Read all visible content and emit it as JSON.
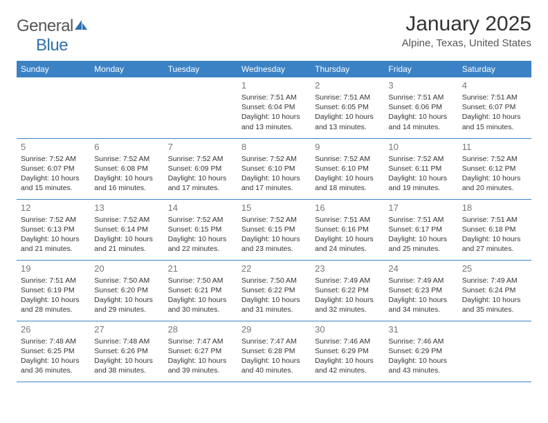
{
  "logo": {
    "text_general": "General",
    "text_blue": "Blue",
    "general_color": "#666666",
    "blue_color": "#2f6fb0",
    "icon_color": "#2f6fb0"
  },
  "title": "January 2025",
  "location": "Alpine, Texas, United States",
  "colors": {
    "header_bg": "#3b82c4",
    "header_text": "#ffffff",
    "border": "#3b82c4",
    "day_num": "#777777",
    "body_text": "#333333"
  },
  "weekdays": [
    "Sunday",
    "Monday",
    "Tuesday",
    "Wednesday",
    "Thursday",
    "Friday",
    "Saturday"
  ],
  "weeks": [
    [
      null,
      null,
      null,
      {
        "n": "1",
        "sunrise": "7:51 AM",
        "sunset": "6:04 PM",
        "daylight": "10 hours and 13 minutes."
      },
      {
        "n": "2",
        "sunrise": "7:51 AM",
        "sunset": "6:05 PM",
        "daylight": "10 hours and 13 minutes."
      },
      {
        "n": "3",
        "sunrise": "7:51 AM",
        "sunset": "6:06 PM",
        "daylight": "10 hours and 14 minutes."
      },
      {
        "n": "4",
        "sunrise": "7:51 AM",
        "sunset": "6:07 PM",
        "daylight": "10 hours and 15 minutes."
      }
    ],
    [
      {
        "n": "5",
        "sunrise": "7:52 AM",
        "sunset": "6:07 PM",
        "daylight": "10 hours and 15 minutes."
      },
      {
        "n": "6",
        "sunrise": "7:52 AM",
        "sunset": "6:08 PM",
        "daylight": "10 hours and 16 minutes."
      },
      {
        "n": "7",
        "sunrise": "7:52 AM",
        "sunset": "6:09 PM",
        "daylight": "10 hours and 17 minutes."
      },
      {
        "n": "8",
        "sunrise": "7:52 AM",
        "sunset": "6:10 PM",
        "daylight": "10 hours and 17 minutes."
      },
      {
        "n": "9",
        "sunrise": "7:52 AM",
        "sunset": "6:10 PM",
        "daylight": "10 hours and 18 minutes."
      },
      {
        "n": "10",
        "sunrise": "7:52 AM",
        "sunset": "6:11 PM",
        "daylight": "10 hours and 19 minutes."
      },
      {
        "n": "11",
        "sunrise": "7:52 AM",
        "sunset": "6:12 PM",
        "daylight": "10 hours and 20 minutes."
      }
    ],
    [
      {
        "n": "12",
        "sunrise": "7:52 AM",
        "sunset": "6:13 PM",
        "daylight": "10 hours and 21 minutes."
      },
      {
        "n": "13",
        "sunrise": "7:52 AM",
        "sunset": "6:14 PM",
        "daylight": "10 hours and 21 minutes."
      },
      {
        "n": "14",
        "sunrise": "7:52 AM",
        "sunset": "6:15 PM",
        "daylight": "10 hours and 22 minutes."
      },
      {
        "n": "15",
        "sunrise": "7:52 AM",
        "sunset": "6:15 PM",
        "daylight": "10 hours and 23 minutes."
      },
      {
        "n": "16",
        "sunrise": "7:51 AM",
        "sunset": "6:16 PM",
        "daylight": "10 hours and 24 minutes."
      },
      {
        "n": "17",
        "sunrise": "7:51 AM",
        "sunset": "6:17 PM",
        "daylight": "10 hours and 25 minutes."
      },
      {
        "n": "18",
        "sunrise": "7:51 AM",
        "sunset": "6:18 PM",
        "daylight": "10 hours and 27 minutes."
      }
    ],
    [
      {
        "n": "19",
        "sunrise": "7:51 AM",
        "sunset": "6:19 PM",
        "daylight": "10 hours and 28 minutes."
      },
      {
        "n": "20",
        "sunrise": "7:50 AM",
        "sunset": "6:20 PM",
        "daylight": "10 hours and 29 minutes."
      },
      {
        "n": "21",
        "sunrise": "7:50 AM",
        "sunset": "6:21 PM",
        "daylight": "10 hours and 30 minutes."
      },
      {
        "n": "22",
        "sunrise": "7:50 AM",
        "sunset": "6:22 PM",
        "daylight": "10 hours and 31 minutes."
      },
      {
        "n": "23",
        "sunrise": "7:49 AM",
        "sunset": "6:22 PM",
        "daylight": "10 hours and 32 minutes."
      },
      {
        "n": "24",
        "sunrise": "7:49 AM",
        "sunset": "6:23 PM",
        "daylight": "10 hours and 34 minutes."
      },
      {
        "n": "25",
        "sunrise": "7:49 AM",
        "sunset": "6:24 PM",
        "daylight": "10 hours and 35 minutes."
      }
    ],
    [
      {
        "n": "26",
        "sunrise": "7:48 AM",
        "sunset": "6:25 PM",
        "daylight": "10 hours and 36 minutes."
      },
      {
        "n": "27",
        "sunrise": "7:48 AM",
        "sunset": "6:26 PM",
        "daylight": "10 hours and 38 minutes."
      },
      {
        "n": "28",
        "sunrise": "7:47 AM",
        "sunset": "6:27 PM",
        "daylight": "10 hours and 39 minutes."
      },
      {
        "n": "29",
        "sunrise": "7:47 AM",
        "sunset": "6:28 PM",
        "daylight": "10 hours and 40 minutes."
      },
      {
        "n": "30",
        "sunrise": "7:46 AM",
        "sunset": "6:29 PM",
        "daylight": "10 hours and 42 minutes."
      },
      {
        "n": "31",
        "sunrise": "7:46 AM",
        "sunset": "6:29 PM",
        "daylight": "10 hours and 43 minutes."
      },
      null
    ]
  ],
  "labels": {
    "sunrise": "Sunrise:",
    "sunset": "Sunset:",
    "daylight": "Daylight:"
  }
}
